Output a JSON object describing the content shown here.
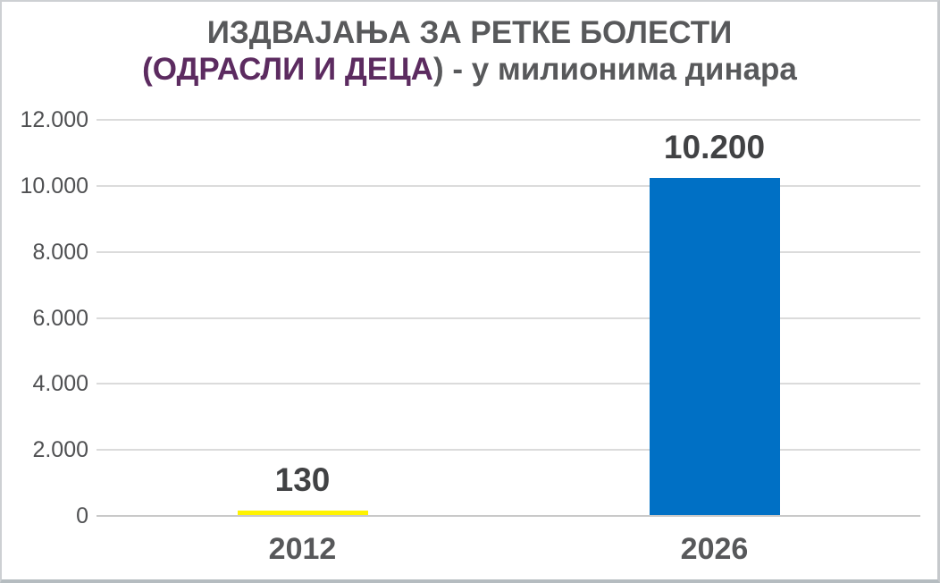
{
  "colors": {
    "title_gray": "#58595b",
    "title_purple": "#5c2b60",
    "bar_2012": "#fff301",
    "bar_2026": "#0070c5",
    "gridline": "#dbdbdb",
    "axis_text": "#4f5052",
    "data_label": "#414244"
  },
  "chart_data": {
    "type": "bar",
    "title": "ИЗДВАЈАЊА ЗА РЕТКЕ БОЛЕСТИ (ОДРАСЛИ И ДЕЦА) - у милионима динара",
    "title_line1": "ИЗДВАЈАЊА ЗА РЕТКЕ БОЛЕСТИ",
    "title_line2_purple": "(ОДРАСЛИ И ДЕЦА",
    "title_line2_gray": ") - у милионима динара",
    "xlabel": "",
    "ylabel": "",
    "unit": "милиона динара",
    "categories": [
      "2012",
      "2026"
    ],
    "values": [
      130,
      10200
    ],
    "value_labels": [
      "130",
      "10.200"
    ],
    "bar_colors": [
      "#fff301",
      "#0070c5"
    ],
    "ylim": [
      0,
      12000
    ],
    "ytick_step": 2000,
    "yticks": [
      {
        "value": 0,
        "label": "0"
      },
      {
        "value": 2000,
        "label": "2.000"
      },
      {
        "value": 4000,
        "label": "4.000"
      },
      {
        "value": 6000,
        "label": "6.000"
      },
      {
        "value": 8000,
        "label": "8.000"
      },
      {
        "value": 10000,
        "label": "10.000"
      },
      {
        "value": 12000,
        "label": "12.000"
      }
    ],
    "grid": true,
    "legend": "none"
  }
}
